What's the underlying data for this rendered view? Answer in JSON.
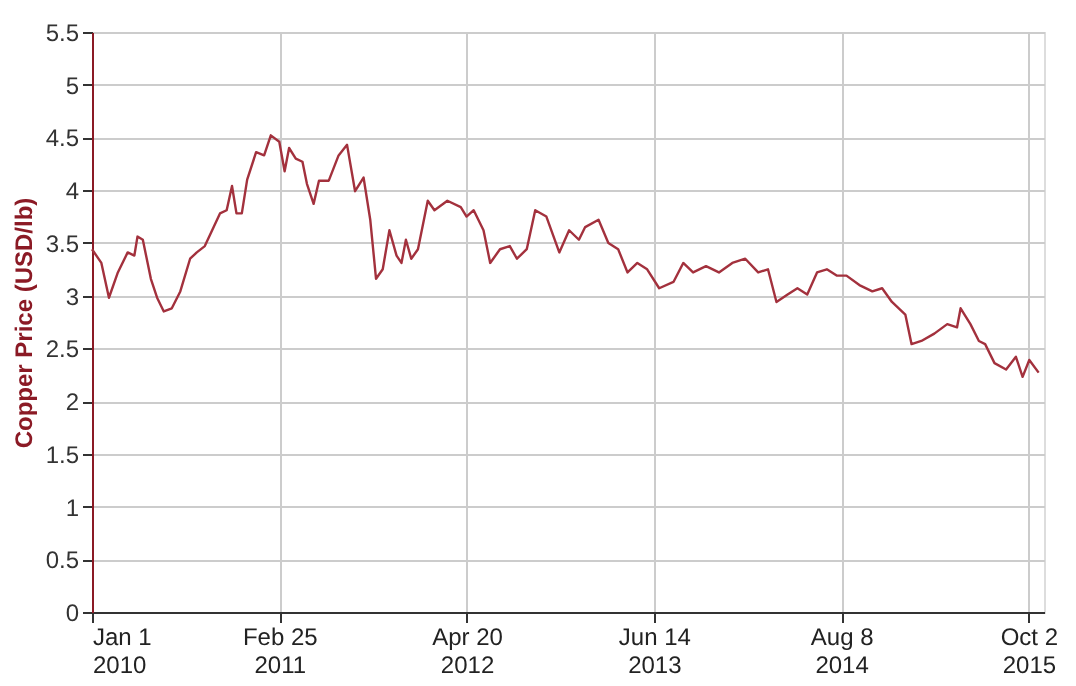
{
  "chart_data": {
    "type": "line",
    "ylabel": "Copper Price (USD/lb)",
    "xlim": [
      "2010-01-01",
      "2015-11-06"
    ],
    "xticks": [
      {
        "value": "2010-01-01",
        "label": "Jan 1\n2010"
      },
      {
        "value": "2011-02-25",
        "label": "Feb 25\n2011"
      },
      {
        "value": "2012-04-20",
        "label": "Apr 20\n2012"
      },
      {
        "value": "2013-06-14",
        "label": "Jun 14\n2013"
      },
      {
        "value": "2014-08-08",
        "label": "Aug 8\n2014"
      },
      {
        "value": "2015-10-02",
        "label": "Oct 2\n2015"
      }
    ],
    "ylim": [
      0,
      5.5
    ],
    "yticks": [
      0,
      0.5,
      1,
      1.5,
      2,
      2.5,
      3,
      3.5,
      4,
      4.5,
      5,
      5.5
    ],
    "grid": true,
    "marker": "none",
    "line_style": "solid",
    "series": [
      {
        "color": "#a3313d",
        "x": [
          "2010-01-01",
          "2010-01-22",
          "2010-02-08",
          "2010-02-28",
          "2010-03-22",
          "2010-04-06",
          "2010-04-13",
          "2010-04-25",
          "2010-05-13",
          "2010-05-27",
          "2010-06-11",
          "2010-06-29",
          "2010-07-18",
          "2010-08-09",
          "2010-08-24",
          "2010-09-11",
          "2010-10-15",
          "2010-10-30",
          "2010-11-11",
          "2010-11-21",
          "2010-12-03",
          "2010-12-15",
          "2011-01-04",
          "2011-01-22",
          "2011-02-06",
          "2011-02-25",
          "2011-03-09",
          "2011-03-19",
          "2011-04-03",
          "2011-04-18",
          "2011-04-28",
          "2011-05-13",
          "2011-05-25",
          "2011-06-16",
          "2011-07-08",
          "2011-07-27",
          "2011-08-14",
          "2011-09-02",
          "2011-09-17",
          "2011-09-30",
          "2011-10-15",
          "2011-10-30",
          "2011-11-15",
          "2011-11-26",
          "2011-12-06",
          "2011-12-18",
          "2012-01-02",
          "2012-01-24",
          "2012-02-08",
          "2012-03-08",
          "2012-04-07",
          "2012-04-20",
          "2012-05-06",
          "2012-05-28",
          "2012-06-12",
          "2012-07-04",
          "2012-07-26",
          "2012-08-11",
          "2012-09-02",
          "2012-09-21",
          "2012-10-16",
          "2012-11-14",
          "2012-12-06",
          "2012-12-28",
          "2013-01-11",
          "2013-02-10",
          "2013-03-04",
          "2013-03-26",
          "2013-04-16",
          "2013-05-08",
          "2013-05-30",
          "2013-06-26",
          "2013-07-28",
          "2013-08-19",
          "2013-09-10",
          "2013-10-09",
          "2013-11-07",
          "2013-12-07",
          "2014-01-05",
          "2014-02-03",
          "2014-02-25",
          "2014-03-16",
          "2014-04-10",
          "2014-05-02",
          "2014-05-24",
          "2014-06-15",
          "2014-07-07",
          "2014-07-29",
          "2014-08-20",
          "2014-09-18",
          "2014-10-17",
          "2014-11-08",
          "2014-11-30",
          "2014-12-30",
          "2015-01-13",
          "2015-02-04",
          "2015-03-05",
          "2015-04-03",
          "2015-04-25",
          "2015-05-03",
          "2015-05-25",
          "2015-06-13",
          "2015-06-27",
          "2015-07-18",
          "2015-08-13",
          "2015-09-04",
          "2015-09-19",
          "2015-10-04",
          "2015-10-25"
        ],
        "values": [
          3.44,
          3.31,
          2.98,
          3.22,
          3.41,
          3.38,
          3.56,
          3.53,
          3.16,
          2.98,
          2.85,
          2.88,
          3.04,
          3.35,
          3.41,
          3.47,
          3.78,
          3.81,
          4.04,
          3.78,
          3.78,
          4.1,
          4.36,
          4.33,
          4.52,
          4.46,
          4.18,
          4.4,
          4.3,
          4.27,
          4.06,
          3.87,
          4.09,
          4.09,
          4.33,
          4.43,
          3.99,
          4.12,
          3.72,
          3.16,
          3.25,
          3.62,
          3.38,
          3.31,
          3.53,
          3.35,
          3.44,
          3.9,
          3.81,
          3.9,
          3.84,
          3.75,
          3.81,
          3.62,
          3.31,
          3.44,
          3.47,
          3.35,
          3.44,
          3.81,
          3.75,
          3.41,
          3.62,
          3.53,
          3.65,
          3.72,
          3.5,
          3.44,
          3.22,
          3.31,
          3.25,
          3.07,
          3.13,
          3.31,
          3.22,
          3.28,
          3.22,
          3.31,
          3.35,
          3.22,
          3.25,
          2.94,
          3.01,
          3.07,
          3.01,
          3.22,
          3.25,
          3.19,
          3.19,
          3.1,
          3.04,
          3.07,
          2.94,
          2.82,
          2.54,
          2.57,
          2.64,
          2.73,
          2.7,
          2.88,
          2.73,
          2.57,
          2.54,
          2.36,
          2.3,
          2.42,
          2.23,
          2.39,
          2.27
        ]
      }
    ]
  }
}
